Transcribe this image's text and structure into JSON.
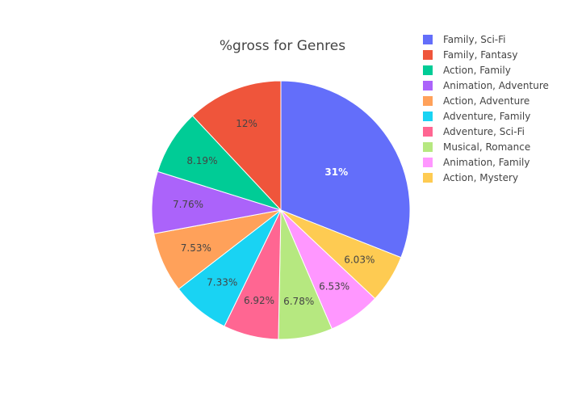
{
  "chart_data": {
    "type": "pie",
    "title": "%gross for Genres",
    "slices": [
      {
        "label": "Family, Sci-Fi",
        "value": 31,
        "text": "31%",
        "color": "#636efa"
      },
      {
        "label": "Action, Mystery",
        "value": 6.03,
        "text": "6.03%",
        "color": "#fecb52"
      },
      {
        "label": "Animation, Family",
        "value": 6.53,
        "text": "6.53%",
        "color": "#ff97ff"
      },
      {
        "label": "Musical, Romance",
        "value": 6.78,
        "text": "6.78%",
        "color": "#b6e880"
      },
      {
        "label": "Adventure, Sci-Fi",
        "value": 6.92,
        "text": "6.92%",
        "color": "#ff6692"
      },
      {
        "label": "Adventure, Family",
        "value": 7.33,
        "text": "7.33%",
        "color": "#19d3f3"
      },
      {
        "label": "Action, Adventure",
        "value": 7.53,
        "text": "7.53%",
        "color": "#ffa15a"
      },
      {
        "label": "Animation, Adventure",
        "value": 7.76,
        "text": "7.76%",
        "color": "#ab63fa"
      },
      {
        "label": "Action, Family",
        "value": 8.19,
        "text": "8.19%",
        "color": "#00cc96"
      },
      {
        "label": "Family, Fantasy",
        "value": 12,
        "text": "12%",
        "color": "#ef553b"
      }
    ],
    "legend": {
      "placement": "top-right",
      "order": [
        "Family, Sci-Fi",
        "Family, Fantasy",
        "Action, Family",
        "Animation, Adventure",
        "Action, Adventure",
        "Adventure, Family",
        "Adventure, Sci-Fi",
        "Musical, Romance",
        "Animation, Family",
        "Action, Mystery"
      ]
    }
  }
}
